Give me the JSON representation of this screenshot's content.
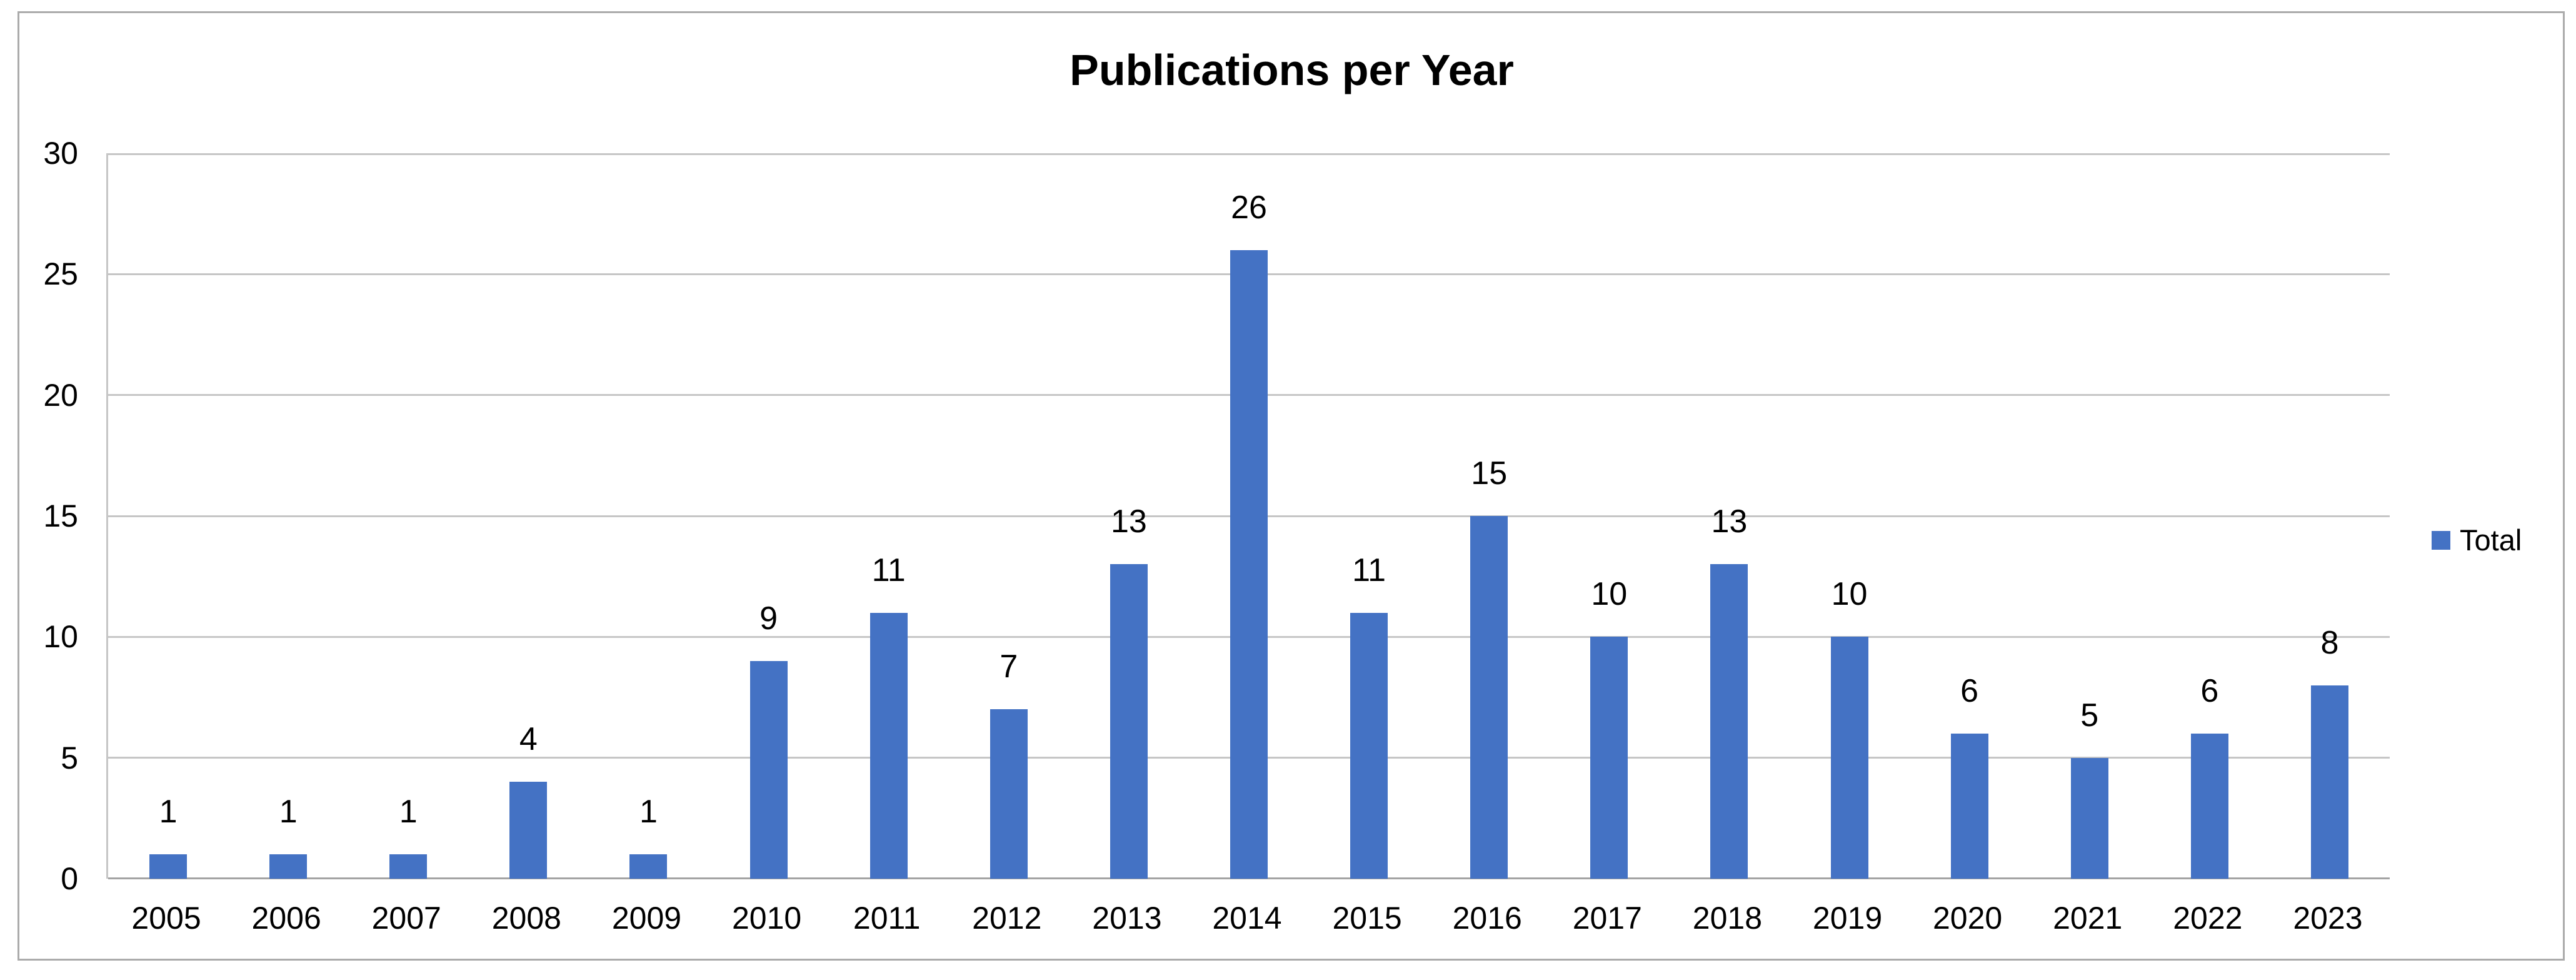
{
  "chart": {
    "title": "Publications per Year",
    "legend": {
      "label": "Total"
    }
  },
  "chart_data": {
    "type": "bar",
    "title": "Publications per Year",
    "categories": [
      "2005",
      "2006",
      "2007",
      "2008",
      "2009",
      "2010",
      "2011",
      "2012",
      "2013",
      "2014",
      "2015",
      "2016",
      "2017",
      "2018",
      "2019",
      "2020",
      "2021",
      "2022",
      "2023"
    ],
    "series": [
      {
        "name": "Total",
        "values": [
          1,
          1,
          1,
          4,
          1,
          9,
          11,
          7,
          13,
          26,
          11,
          15,
          10,
          13,
          10,
          6,
          5,
          6,
          8
        ]
      }
    ],
    "xlabel": "",
    "ylabel": "",
    "ylim": [
      0,
      30
    ],
    "yticks": [
      0,
      5,
      10,
      15,
      20,
      25,
      30
    ],
    "grid": true,
    "legend_position": "right",
    "data_labels": true,
    "colors": {
      "bar": "#4472C4",
      "gridline": "#c6c6c6",
      "axis_line": "#a3a3a3",
      "frame_border": "#ababab",
      "text": "#000000"
    }
  }
}
